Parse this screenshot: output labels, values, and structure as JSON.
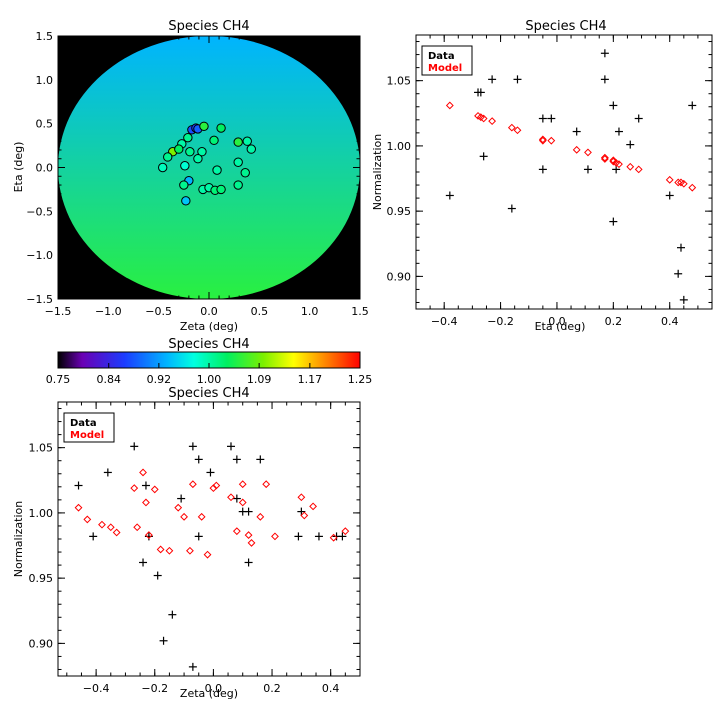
{
  "chart_data": [
    {
      "id": "map",
      "type": "scatter",
      "title": "Species CH4",
      "xlabel": "Zeta (deg)",
      "ylabel": "Eta (deg)",
      "xlim": [
        -1.5,
        1.5
      ],
      "ylim": [
        -1.5,
        1.5
      ],
      "xticks": [
        -1.5,
        -1.0,
        -0.5,
        0.0,
        0.5,
        1.0,
        1.5
      ],
      "xtick_labels": [
        "−1.5",
        "−1.0",
        "−0.5",
        "0.0",
        "0.5",
        "1.0",
        "1.5"
      ],
      "yticks": [
        -1.5,
        -1.0,
        -0.5,
        0.0,
        0.5,
        1.0,
        1.5
      ],
      "ytick_labels": [
        "−1.5",
        "−1.0",
        "−0.5",
        "0.0",
        "0.5",
        "1.0",
        "1.5"
      ],
      "background": "black",
      "disk_radius": 1.5,
      "disk_gradient": {
        "top_value": 0.93,
        "bottom_value": 1.05
      },
      "points": [
        {
          "x": -0.17,
          "y": 0.43,
          "v": 0.87
        },
        {
          "x": -0.13,
          "y": 0.45,
          "v": 0.86
        },
        {
          "x": -0.11,
          "y": 0.44,
          "v": 0.88
        },
        {
          "x": -0.05,
          "y": 0.47,
          "v": 1.05
        },
        {
          "x": 0.12,
          "y": 0.45,
          "v": 1.03
        },
        {
          "x": -0.21,
          "y": 0.34,
          "v": 1.01
        },
        {
          "x": 0.05,
          "y": 0.31,
          "v": 1.02
        },
        {
          "x": 0.29,
          "y": 0.29,
          "v": 1.05
        },
        {
          "x": 0.38,
          "y": 0.3,
          "v": 1.0
        },
        {
          "x": -0.27,
          "y": 0.27,
          "v": 1.0
        },
        {
          "x": 0.42,
          "y": 0.21,
          "v": 1.0
        },
        {
          "x": -0.36,
          "y": 0.18,
          "v": 1.09
        },
        {
          "x": -0.3,
          "y": 0.21,
          "v": 1.03
        },
        {
          "x": -0.07,
          "y": 0.18,
          "v": 1.0
        },
        {
          "x": -0.41,
          "y": 0.12,
          "v": 1.01
        },
        {
          "x": -0.19,
          "y": 0.18,
          "v": 1.01
        },
        {
          "x": -0.11,
          "y": 0.1,
          "v": 1.0
        },
        {
          "x": -0.46,
          "y": 0.0,
          "v": 0.99
        },
        {
          "x": -0.24,
          "y": 0.02,
          "v": 0.98
        },
        {
          "x": 0.29,
          "y": 0.06,
          "v": 1.0
        },
        {
          "x": 0.08,
          "y": -0.03,
          "v": 1.0
        },
        {
          "x": 0.36,
          "y": -0.06,
          "v": 1.01
        },
        {
          "x": -0.2,
          "y": -0.15,
          "v": 0.93
        },
        {
          "x": -0.25,
          "y": -0.2,
          "v": 1.01
        },
        {
          "x": 0.29,
          "y": -0.2,
          "v": 1.01
        },
        {
          "x": -0.06,
          "y": -0.25,
          "v": 1.0
        },
        {
          "x": 0.0,
          "y": -0.23,
          "v": 1.0
        },
        {
          "x": 0.06,
          "y": -0.26,
          "v": 1.02
        },
        {
          "x": 0.12,
          "y": -0.25,
          "v": 1.02
        },
        {
          "x": -0.23,
          "y": -0.38,
          "v": 0.94
        }
      ]
    },
    {
      "id": "eta",
      "type": "scatter",
      "title": "Species CH4",
      "xlabel": "Eta (deg)",
      "ylabel": "Normalization",
      "xlim": [
        -0.5,
        0.55
      ],
      "ylim": [
        0.875,
        1.085
      ],
      "xticks": [
        -0.4,
        -0.2,
        0.0,
        0.2,
        0.4
      ],
      "xtick_labels": [
        "−0.4",
        "−0.2",
        "0.0",
        "0.2",
        "0.4"
      ],
      "yticks": [
        0.9,
        0.95,
        1.0,
        1.05
      ],
      "ytick_labels": [
        "0.90",
        "0.95",
        "1.00",
        "1.05"
      ],
      "legend": {
        "position": "top-left",
        "entries": [
          {
            "label": "Data",
            "color": "#000000"
          },
          {
            "label": "Model",
            "color": "#ff0000"
          }
        ]
      },
      "series": [
        {
          "name": "Data",
          "marker": "plus",
          "color": "#000000",
          "x": [
            -0.38,
            -0.28,
            -0.27,
            -0.26,
            -0.23,
            -0.16,
            -0.14,
            -0.05,
            -0.05,
            -0.02,
            0.07,
            0.11,
            0.17,
            0.17,
            0.2,
            0.2,
            0.21,
            0.22,
            0.26,
            0.29,
            0.4,
            0.43,
            0.44,
            0.45,
            0.48
          ],
          "y": [
            0.962,
            1.041,
            1.041,
            0.992,
            1.051,
            0.952,
            1.051,
            1.021,
            0.982,
            1.021,
            1.011,
            0.982,
            1.071,
            1.051,
            1.031,
            0.942,
            0.982,
            1.011,
            1.001,
            1.021,
            0.962,
            0.902,
            0.922,
            0.882,
            1.031
          ]
        },
        {
          "name": "Model",
          "marker": "diamond",
          "color": "#ff0000",
          "x": [
            -0.38,
            -0.28,
            -0.27,
            -0.26,
            -0.23,
            -0.16,
            -0.14,
            -0.05,
            -0.05,
            -0.02,
            0.07,
            0.11,
            0.17,
            0.17,
            0.2,
            0.2,
            0.21,
            0.22,
            0.26,
            0.29,
            0.4,
            0.43,
            0.44,
            0.45,
            0.48
          ],
          "y": [
            1.031,
            1.023,
            1.022,
            1.021,
            1.019,
            1.014,
            1.012,
            1.005,
            1.004,
            1.004,
            0.997,
            0.995,
            0.991,
            0.99,
            0.989,
            0.988,
            0.987,
            0.986,
            0.984,
            0.982,
            0.974,
            0.972,
            0.972,
            0.971,
            0.968
          ]
        }
      ]
    },
    {
      "id": "zeta",
      "type": "scatter",
      "title": "Species CH4",
      "xlabel": "Zeta (deg)",
      "ylabel": "Normalization",
      "xlim": [
        -0.53,
        0.5
      ],
      "ylim": [
        0.875,
        1.085
      ],
      "xticks": [
        -0.4,
        -0.2,
        0.0,
        0.2,
        0.4
      ],
      "xtick_labels": [
        "−0.4",
        "−0.2",
        "0.0",
        "0.2",
        "0.4"
      ],
      "yticks": [
        0.9,
        0.95,
        1.0,
        1.05
      ],
      "ytick_labels": [
        "0.90",
        "0.95",
        "1.00",
        "1.05"
      ],
      "legend": {
        "position": "top-left",
        "entries": [
          {
            "label": "Data",
            "color": "#000000"
          },
          {
            "label": "Model",
            "color": "#ff0000"
          }
        ]
      },
      "series": [
        {
          "name": "Data",
          "marker": "plus",
          "color": "#000000",
          "x": [
            -0.46,
            -0.41,
            -0.36,
            -0.27,
            -0.24,
            -0.23,
            -0.22,
            -0.19,
            -0.17,
            -0.14,
            -0.11,
            -0.07,
            -0.07,
            -0.05,
            -0.05,
            -0.01,
            0.06,
            0.08,
            0.08,
            0.1,
            0.12,
            0.12,
            0.16,
            0.29,
            0.3,
            0.36,
            0.42,
            0.44
          ],
          "y": [
            1.021,
            0.982,
            1.031,
            1.051,
            0.962,
            1.021,
            0.982,
            0.952,
            0.902,
            0.922,
            1.011,
            0.882,
            1.051,
            1.041,
            0.982,
            1.031,
            1.051,
            1.011,
            1.041,
            1.001,
            1.001,
            0.962,
            1.041,
            0.982,
            1.001,
            0.982,
            0.982,
            0.982
          ]
        },
        {
          "name": "Model",
          "marker": "diamond",
          "color": "#ff0000",
          "x": [
            -0.46,
            -0.43,
            -0.38,
            -0.35,
            -0.33,
            -0.27,
            -0.26,
            -0.24,
            -0.23,
            -0.22,
            -0.2,
            -0.18,
            -0.15,
            -0.12,
            -0.1,
            -0.08,
            -0.07,
            -0.04,
            -0.02,
            0.0,
            0.01,
            0.06,
            0.08,
            0.1,
            0.1,
            0.12,
            0.13,
            0.16,
            0.18,
            0.21,
            0.3,
            0.31,
            0.34,
            0.41,
            0.45
          ],
          "y": [
            1.004,
            0.995,
            0.991,
            0.989,
            0.985,
            1.019,
            0.989,
            1.031,
            1.008,
            0.983,
            1.018,
            0.972,
            0.971,
            1.004,
            0.997,
            0.971,
            1.022,
            0.997,
            0.968,
            1.019,
            1.021,
            1.012,
            0.986,
            1.022,
            1.008,
            0.983,
            0.977,
            0.997,
            1.022,
            0.982,
            1.012,
            0.998,
            1.005,
            0.981,
            0.986
          ]
        }
      ]
    }
  ],
  "colorbar": {
    "title": "Species CH4",
    "range": [
      0.75,
      1.25
    ],
    "tick_labels": [
      "0.75",
      "0.84",
      "0.92",
      "1.00",
      "1.09",
      "1.17",
      "1.25"
    ],
    "tick_values": [
      0.75,
      0.834,
      0.917,
      1.0,
      1.083,
      1.167,
      1.25
    ]
  }
}
